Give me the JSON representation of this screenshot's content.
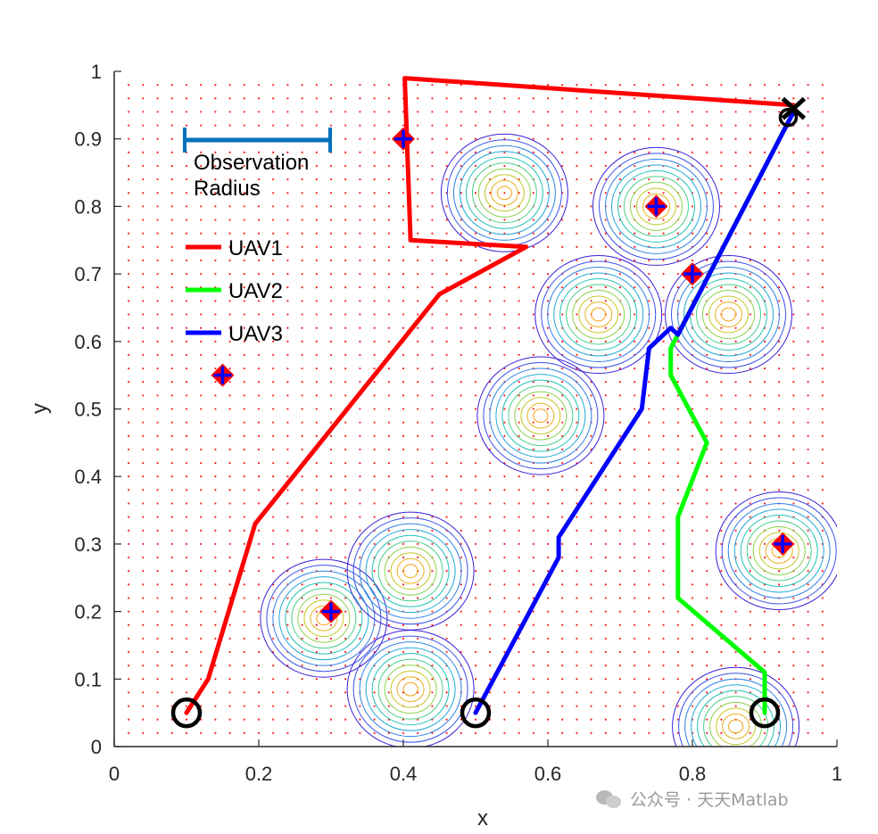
{
  "chart_data": {
    "type": "scatter",
    "xlabel": "x",
    "ylabel": "y",
    "xlim": [
      0,
      1
    ],
    "ylim": [
      0,
      1
    ],
    "xticks": [
      "0",
      "0.2",
      "0.4",
      "0.6",
      "0.8",
      "1"
    ],
    "yticks": [
      "0",
      "0.1",
      "0.2",
      "0.3",
      "0.4",
      "0.5",
      "0.6",
      "0.7",
      "0.8",
      "0.9",
      "1"
    ],
    "observation_radius_label": "Observation Radius",
    "observation_radius_color": "#0072BD",
    "grid_dot_color": "#ff0000",
    "targets": [
      {
        "x": 0.15,
        "y": 0.55
      },
      {
        "x": 0.3,
        "y": 0.2
      },
      {
        "x": 0.4,
        "y": 0.9
      },
      {
        "x": 0.75,
        "y": 0.8
      },
      {
        "x": 0.8,
        "y": 0.7
      },
      {
        "x": 0.925,
        "y": 0.3
      }
    ],
    "start_points": [
      {
        "x": 0.1,
        "y": 0.05
      },
      {
        "x": 0.5,
        "y": 0.05
      },
      {
        "x": 0.9,
        "y": 0.05
      }
    ],
    "goal_point": {
      "x": 0.94,
      "y": 0.945
    },
    "series": [
      {
        "name": "UAV1",
        "color": "#ff0000",
        "x": [
          0.1,
          0.13,
          0.195,
          0.45,
          0.57,
          0.41,
          0.402,
          0.94
        ],
        "y": [
          0.05,
          0.1,
          0.33,
          0.67,
          0.74,
          0.75,
          0.99,
          0.95
        ]
      },
      {
        "name": "UAV2",
        "color": "#00ff00",
        "x": [
          0.9,
          0.9,
          0.78,
          0.78,
          0.82,
          0.77,
          0.77,
          0.94
        ],
        "y": [
          0.05,
          0.11,
          0.22,
          0.34,
          0.45,
          0.55,
          0.59,
          0.94
        ]
      },
      {
        "name": "UAV3",
        "color": "#0000ff",
        "x": [
          0.5,
          0.615,
          0.615,
          0.73,
          0.74,
          0.77,
          0.78,
          0.94
        ],
        "y": [
          0.05,
          0.28,
          0.31,
          0.5,
          0.59,
          0.62,
          0.61,
          0.94
        ]
      }
    ],
    "density_peaks": [
      {
        "x": 0.54,
        "y": 0.82
      },
      {
        "x": 0.75,
        "y": 0.8
      },
      {
        "x": 0.67,
        "y": 0.64
      },
      {
        "x": 0.85,
        "y": 0.64
      },
      {
        "x": 0.59,
        "y": 0.49
      },
      {
        "x": 0.92,
        "y": 0.29
      },
      {
        "x": 0.29,
        "y": 0.19
      },
      {
        "x": 0.41,
        "y": 0.26
      },
      {
        "x": 0.41,
        "y": 0.085
      },
      {
        "x": 0.86,
        "y": 0.03
      }
    ]
  },
  "watermark": "公众号 · 天天Matlab"
}
